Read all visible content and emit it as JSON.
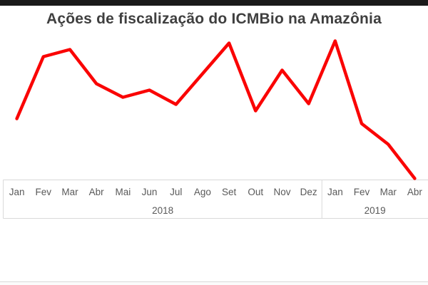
{
  "chart_data": {
    "type": "line",
    "title": "Ações de fiscalização do ICMBio na Amazônia",
    "categories": [
      "Jan",
      "Fev",
      "Mar",
      "Abr",
      "Mai",
      "Jun",
      "Jul",
      "Ago",
      "Set",
      "Out",
      "Nov",
      "Dez",
      "Jan",
      "Fev",
      "Mar",
      "Abr"
    ],
    "year_groups": [
      {
        "label": "2018",
        "months": 12
      },
      {
        "label": "2019",
        "months": 4
      }
    ],
    "series": [
      {
        "name": "Ações de fiscalização",
        "values": [
          86,
          173,
          183,
          135,
          116,
          126,
          106,
          149,
          192,
          97,
          154,
          107,
          195,
          79,
          50,
          2
        ]
      }
    ],
    "xlabel": "",
    "ylabel": "",
    "ylim": [
      0,
      210
    ],
    "grid": false,
    "legend_position": "none",
    "line_color": "#fa0404"
  },
  "style": {
    "background": "#ffffff",
    "top_bar_color": "#1a1a1a",
    "title_color": "#3f3f3f",
    "axis_line_color": "#d9d9d9",
    "tick_label_color": "#595959",
    "bottom_edge_color": "#d9d9d9"
  }
}
